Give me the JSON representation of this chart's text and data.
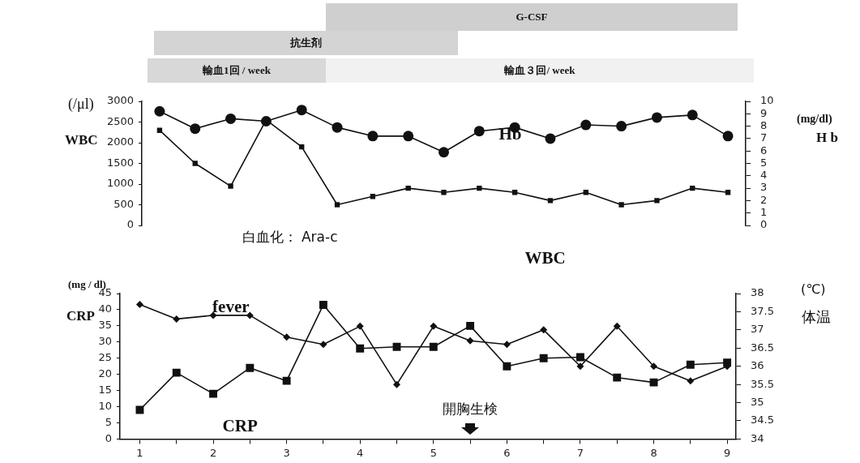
{
  "chart_data": [
    {
      "type": "line",
      "ylabel": "(/μl)\nWBC",
      "y2label": "(mg/dl)\nH b",
      "categories": [
        null,
        null,
        null,
        null,
        null,
        null,
        null,
        null,
        null,
        null,
        null,
        null,
        null,
        null,
        null,
        null,
        null
      ],
      "series": [
        {
          "name": "WBC",
          "color": "#111111",
          "marker": "square",
          "values": [
            2300,
            1500,
            950,
            2550,
            1900,
            500,
            700,
            900,
            800,
            900,
            800,
            600,
            800,
            500,
            600,
            900,
            800
          ]
        },
        {
          "name": "Hb",
          "color": "#111111",
          "marker": "circle",
          "axis": "y2",
          "values": [
            9.2,
            7.8,
            8.6,
            8.4,
            9.3,
            7.9,
            7.2,
            7.2,
            5.9,
            7.6,
            7.9,
            7.0,
            8.1,
            8.0,
            8.7,
            8.9,
            7.2
          ]
        }
      ],
      "ylim": [
        0,
        3000
      ],
      "yticks": [
        0,
        500,
        1000,
        1500,
        2000,
        2500,
        3000
      ],
      "y2lim": [
        0,
        10
      ],
      "y2ticks": [
        0,
        1,
        2,
        3,
        4,
        5,
        6,
        7,
        8,
        9,
        10
      ],
      "annotations": [
        "G-CSF",
        "抗生剤",
        "輸血1回 / week",
        "輸血３回/ week",
        "白血化： Ara-c"
      ],
      "grid": false
    },
    {
      "type": "line",
      "ylabel": "(mg / dl)\nCRP",
      "y2label": "(℃)\n体温",
      "x": [
        1,
        1.5,
        2,
        2.5,
        3,
        3.5,
        4,
        4.5,
        5,
        5.5,
        6,
        6.5,
        7,
        7.5,
        8,
        8.5,
        9
      ],
      "series": [
        {
          "name": "fever",
          "color": "#111111",
          "marker": "diamond",
          "axis": "y2",
          "values": [
            37.7,
            37.3,
            37.4,
            37.4,
            36.8,
            36.6,
            37.1,
            35.5,
            37.1,
            36.7,
            36.6,
            37.0,
            36.0,
            37.1,
            36.0,
            35.6,
            36.0
          ]
        },
        {
          "name": "CRP",
          "color": "#111111",
          "marker": "square",
          "values": [
            9,
            20.5,
            14,
            22,
            18,
            41.5,
            28,
            28.5,
            28.5,
            35,
            22.5,
            25,
            25.3,
            19,
            17.5,
            23,
            23.6
          ]
        }
      ],
      "xlim": [
        0.73,
        9.12
      ],
      "xticks": [
        1,
        {
          "value": 1.5,
          "label": null
        },
        2,
        {
          "value": 2.5,
          "label": null
        },
        3,
        {
          "value": 3.5,
          "label": null
        },
        4,
        {
          "value": 4.5,
          "label": null
        },
        5,
        {
          "value": 5.5,
          "label": null
        },
        6,
        {
          "value": 6.5,
          "label": null
        },
        7,
        {
          "value": 7.5,
          "label": null
        },
        8,
        {
          "value": 8.5,
          "label": null
        },
        9
      ],
      "ylim": [
        0,
        45
      ],
      "yticks": [
        0,
        5,
        10,
        15,
        20,
        25,
        30,
        35,
        40,
        45
      ],
      "y2lim": [
        34,
        38
      ],
      "y2ticks": [
        34,
        34.5,
        35,
        35.5,
        36,
        36.5,
        37,
        37.5,
        38
      ],
      "annotations": [
        "開胸生検"
      ],
      "grid": false
    }
  ]
}
